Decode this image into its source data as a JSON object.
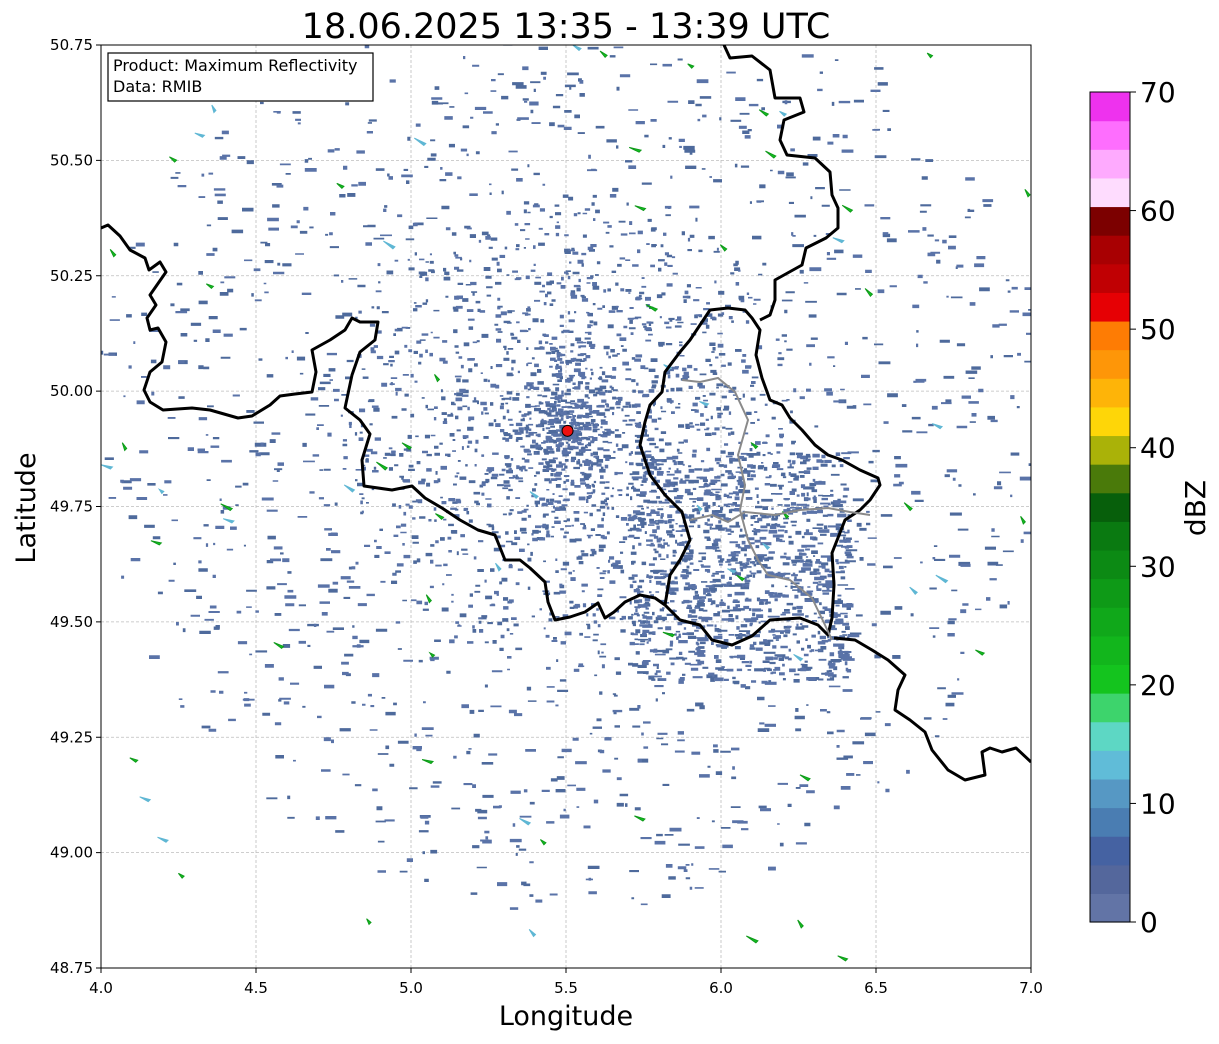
{
  "title": "18.06.2025 13:35 - 13:39 UTC",
  "info_box": {
    "product": "Product: Maximum Reflectivity",
    "data": "Data: RMIB"
  },
  "axes": {
    "xlabel": "Longitude",
    "ylabel": "Latitude",
    "xlim": [
      4.0,
      7.0
    ],
    "ylim": [
      48.75,
      50.75
    ],
    "xticks": [
      "4.0",
      "4.5",
      "5.0",
      "5.5",
      "6.0",
      "6.5",
      "7.0"
    ],
    "yticks": [
      "50.75",
      "50.50",
      "50.25",
      "50.00",
      "49.75",
      "49.50",
      "49.25",
      "49.00",
      "48.75"
    ],
    "grid": true
  },
  "radar_site": {
    "lon": 5.505,
    "lat": 49.914,
    "color": "#ee1111"
  },
  "colorbar": {
    "label": "dBZ",
    "ticks": [
      "0",
      "10",
      "20",
      "30",
      "40",
      "50",
      "60",
      "70"
    ],
    "range": [
      0,
      70
    ],
    "colors": [
      "#6274a6",
      "#54679c",
      "#4562a2",
      "#4a7db2",
      "#5698c4",
      "#60bcd8",
      "#5dd7c4",
      "#3dd46c",
      "#14c41e",
      "#12b61c",
      "#10a81a",
      "#0e9a17",
      "#0c8a14",
      "#0a7a11",
      "#075f0b",
      "#4a7a0a",
      "#aab208",
      "#fed608",
      "#feb408",
      "#fe9608",
      "#fe7c04",
      "#e60004",
      "#c00003",
      "#a80002",
      "#7c0000",
      "#fedcfe",
      "#feaafe",
      "#fe6efe",
      "#ee32ee"
    ]
  },
  "echo_colors": {
    "base": "#4e6a9c",
    "dense": "#5a73a8",
    "cyan": "#5fb7d4",
    "green": "#13c322",
    "dark_green": "#0f9a1a"
  }
}
